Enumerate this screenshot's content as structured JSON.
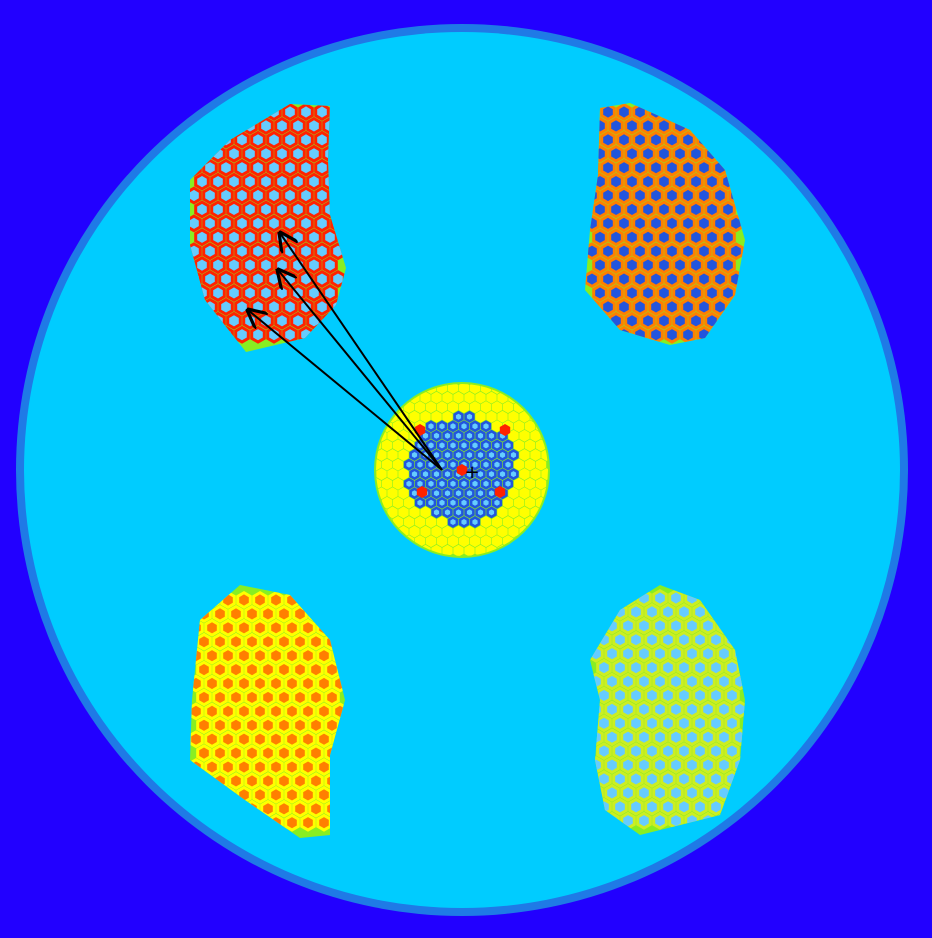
{
  "colors": {
    "background": "#2200ff",
    "vessel_rim": "#1f7ae6",
    "moderator": "#00ccff",
    "fuel_region": "#88ee22",
    "hex_red": "#ff2200",
    "hex_orange": "#ff7f00",
    "hex_yellow": "#ffff00",
    "hex_yellow_green": "#ccee22",
    "pin_blue": "#2255dd",
    "pin_cyan": "#66ccff",
    "arrow": "#000000"
  },
  "regions": [
    {
      "name": "upper-left-fuel-block",
      "fill": "hex_red"
    },
    {
      "name": "upper-right-fuel-block",
      "fill": "hex_orange"
    },
    {
      "name": "lower-left-fuel-block",
      "fill": "hex_yellow"
    },
    {
      "name": "lower-right-fuel-block",
      "fill": "hex_yellow_green"
    },
    {
      "name": "central-core",
      "fill": "hex_yellow"
    }
  ],
  "arrows": {
    "count": 3,
    "source": "central-core",
    "target": "upper-left-fuel-block"
  },
  "center_marker": "+"
}
